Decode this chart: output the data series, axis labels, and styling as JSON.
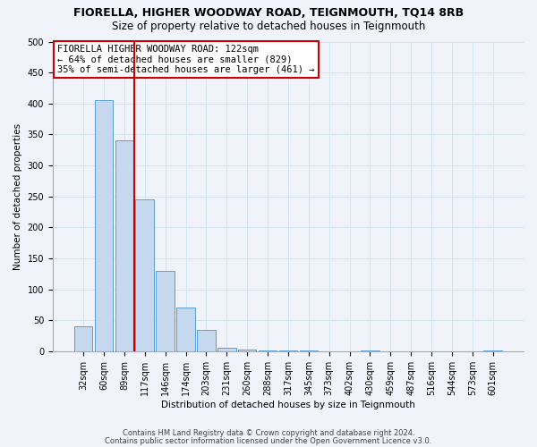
{
  "title": "FIORELLA, HIGHER WOODWAY ROAD, TEIGNMOUTH, TQ14 8RB",
  "subtitle": "Size of property relative to detached houses in Teignmouth",
  "xlabel": "Distribution of detached houses by size in Teignmouth",
  "ylabel": "Number of detached properties",
  "categories": [
    "32sqm",
    "60sqm",
    "89sqm",
    "117sqm",
    "146sqm",
    "174sqm",
    "203sqm",
    "231sqm",
    "260sqm",
    "288sqm",
    "317sqm",
    "345sqm",
    "373sqm",
    "402sqm",
    "430sqm",
    "459sqm",
    "487sqm",
    "516sqm",
    "544sqm",
    "573sqm",
    "601sqm"
  ],
  "values": [
    40,
    405,
    340,
    245,
    130,
    70,
    35,
    5,
    2,
    1,
    1,
    1,
    0,
    0,
    1,
    0,
    0,
    0,
    0,
    0,
    1
  ],
  "bar_color": "#c5d8ee",
  "bar_edge_color": "#5a9fd4",
  "vline_x": 2.5,
  "vline_color": "#cc0000",
  "annotation_text": "FIORELLA HIGHER WOODWAY ROAD: 122sqm\n← 64% of detached houses are smaller (829)\n35% of semi-detached houses are larger (461) →",
  "annotation_box_color": "#ffffff",
  "annotation_box_edge": "#cc0000",
  "ylim": [
    0,
    500
  ],
  "yticks": [
    0,
    50,
    100,
    150,
    200,
    250,
    300,
    350,
    400,
    450,
    500
  ],
  "footer1": "Contains HM Land Registry data © Crown copyright and database right 2024.",
  "footer2": "Contains public sector information licensed under the Open Government Licence v3.0.",
  "bg_color": "#f0f4fa",
  "plot_bg_color": "#f0f4fa",
  "grid_color": "#d8e4f0",
  "title_fontsize": 9,
  "subtitle_fontsize": 8.5,
  "axis_label_fontsize": 7.5,
  "tick_fontsize": 7
}
